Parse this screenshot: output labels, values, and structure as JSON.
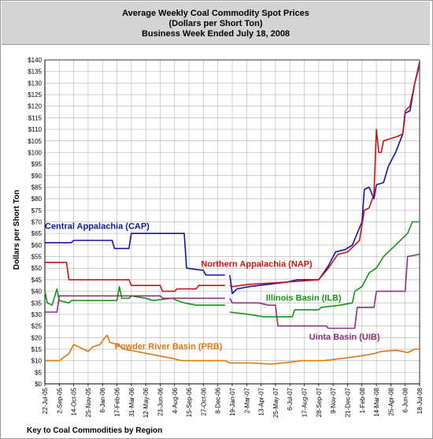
{
  "chart_data": {
    "type": "line",
    "title": [
      "Average Weekly Coal Commodity Spot Prices",
      "(Dollars per Short Ton)",
      "Business Week Ended July 18, 2008"
    ],
    "ylabel": "Dollars per Short Ton",
    "xlabel": "",
    "ylim": [
      0,
      140
    ],
    "y_tick_step": 5,
    "y_tick_format": "$",
    "x_range": [
      "2005-07-22",
      "2008-07-18"
    ],
    "x_ticks": [
      "22-Jul-05",
      "2-Sep-05",
      "14-Oct-05",
      "25-Nov-05",
      "6-Jan-06",
      "17-Feb-06",
      "31-Mar-06",
      "12-May-06",
      "23-Jun-06",
      "4-Aug-06",
      "15-Sep-06",
      "27-Oct-06",
      "8-Dec-06",
      "19-Jan-07",
      "2-Mar-07",
      "13-Apr-07",
      "25-May-07",
      "6-Jul-07",
      "17-Aug-07",
      "28-Sep-07",
      "9-Nov-07",
      "21-Dec-07",
      "1-Feb-08",
      "14-Mar-08",
      "25-Apr-08",
      "6-Jun-08",
      "18-Jul-08"
    ],
    "grid": true,
    "footer": "Key to Coal Commodities by Region",
    "series": [
      {
        "name": "Central Appalachia (CAP)",
        "color": "#1414a8",
        "points": [
          [
            "2005-07-22",
            61
          ],
          [
            "2005-10-07",
            61
          ],
          [
            "2005-10-14",
            62
          ],
          [
            "2006-02-03",
            62
          ],
          [
            "2006-02-10",
            58.5
          ],
          [
            "2006-03-24",
            58.5
          ],
          [
            "2006-03-31",
            65
          ],
          [
            "2006-09-01",
            65
          ],
          [
            "2006-09-08",
            50
          ],
          [
            "2006-10-27",
            49
          ],
          [
            "2006-11-03",
            47
          ],
          [
            "2006-12-29",
            47
          ],
          null,
          [
            "2007-01-12",
            47
          ],
          [
            "2007-01-19",
            39
          ],
          [
            "2007-02-02",
            41
          ],
          [
            "2007-03-09",
            42
          ],
          [
            "2007-06-29",
            44
          ],
          [
            "2007-07-27",
            45
          ],
          [
            "2007-09-28",
            45
          ],
          [
            "2007-10-26",
            51
          ],
          [
            "2007-11-16",
            57
          ],
          [
            "2007-12-14",
            58
          ],
          [
            "2008-01-04",
            60
          ],
          [
            "2008-01-18",
            65
          ],
          [
            "2008-02-01",
            70
          ],
          [
            "2008-02-08",
            84
          ],
          [
            "2008-02-22",
            85
          ],
          [
            "2008-03-07",
            80
          ],
          [
            "2008-03-14",
            86
          ],
          [
            "2008-04-04",
            87
          ],
          [
            "2008-04-18",
            94
          ],
          [
            "2008-05-09",
            100
          ],
          [
            "2008-05-30",
            108
          ],
          [
            "2008-06-06",
            117
          ],
          [
            "2008-06-20",
            118
          ],
          [
            "2008-07-04",
            130
          ],
          [
            "2008-07-18",
            139
          ]
        ]
      },
      {
        "name": "Northern Appalachia (NAP)",
        "color": "#c81414",
        "points": [
          [
            "2005-07-22",
            52.5
          ],
          [
            "2005-09-23",
            52.5
          ],
          [
            "2005-09-30",
            45
          ],
          [
            "2006-03-24",
            45
          ],
          [
            "2006-03-31",
            42.5
          ],
          [
            "2006-06-23",
            42.5
          ],
          [
            "2006-06-30",
            40
          ],
          [
            "2006-08-04",
            40
          ],
          [
            "2006-08-11",
            41
          ],
          [
            "2006-10-06",
            41
          ],
          [
            "2006-10-13",
            42.5
          ],
          [
            "2006-12-29",
            42.5
          ],
          null,
          [
            "2007-01-12",
            42.5
          ],
          [
            "2007-01-19",
            42
          ],
          [
            "2007-03-09",
            43
          ],
          [
            "2007-06-29",
            44
          ],
          [
            "2007-09-28",
            45
          ],
          [
            "2007-10-26",
            50
          ],
          [
            "2007-11-23",
            56
          ],
          [
            "2007-12-21",
            57
          ],
          [
            "2008-01-11",
            60
          ],
          [
            "2008-01-25",
            62
          ],
          [
            "2008-02-08",
            75
          ],
          [
            "2008-02-22",
            76
          ],
          [
            "2008-03-07",
            82
          ],
          [
            "2008-03-14",
            110
          ],
          [
            "2008-03-21",
            100
          ],
          [
            "2008-03-28",
            100
          ],
          [
            "2008-04-04",
            105
          ],
          [
            "2008-04-25",
            106
          ],
          [
            "2008-05-16",
            107
          ],
          [
            "2008-05-30",
            108
          ],
          [
            "2008-06-06",
            118
          ],
          [
            "2008-06-20",
            120
          ],
          [
            "2008-07-04",
            130
          ],
          [
            "2008-07-18",
            138
          ]
        ]
      },
      {
        "name": "Illinois Basin (ILB)",
        "color": "#149614",
        "points": [
          [
            "2005-07-22",
            40
          ],
          [
            "2005-07-29",
            35
          ],
          [
            "2005-08-12",
            34
          ],
          [
            "2005-08-26",
            41
          ],
          [
            "2005-09-02",
            36
          ],
          [
            "2005-09-30",
            35
          ],
          [
            "2005-10-07",
            36
          ],
          [
            "2006-02-17",
            36
          ],
          [
            "2006-02-24",
            42
          ],
          [
            "2006-03-03",
            37
          ],
          [
            "2006-03-24",
            37
          ],
          [
            "2006-03-31",
            38
          ],
          [
            "2006-05-12",
            37
          ],
          [
            "2006-06-02",
            36
          ],
          [
            "2006-07-28",
            37
          ],
          [
            "2006-08-11",
            36
          ],
          [
            "2006-09-01",
            35
          ],
          [
            "2006-10-06",
            34
          ],
          [
            "2006-12-29",
            34
          ],
          null,
          [
            "2007-01-12",
            31
          ],
          [
            "2007-03-09",
            30
          ],
          [
            "2007-04-20",
            29
          ],
          [
            "2007-07-13",
            29
          ],
          [
            "2007-07-20",
            32
          ],
          [
            "2007-09-28",
            32
          ],
          [
            "2007-10-05",
            33
          ],
          [
            "2007-11-30",
            34
          ],
          [
            "2008-01-04",
            35
          ],
          [
            "2008-01-11",
            40
          ],
          [
            "2008-02-01",
            42
          ],
          [
            "2008-02-22",
            48
          ],
          [
            "2008-03-14",
            50
          ],
          [
            "2008-04-04",
            55
          ],
          [
            "2008-04-25",
            58
          ],
          [
            "2008-05-23",
            62
          ],
          [
            "2008-06-13",
            65
          ],
          [
            "2008-06-27",
            70
          ],
          [
            "2008-07-18",
            70
          ]
        ]
      },
      {
        "name": "Powder River Basin (PRB)",
        "color": "#e07814",
        "points": [
          [
            "2005-07-22",
            10
          ],
          [
            "2005-09-02",
            10
          ],
          [
            "2005-09-30",
            13
          ],
          [
            "2005-10-14",
            17
          ],
          [
            "2005-10-28",
            16
          ],
          [
            "2005-11-25",
            14
          ],
          [
            "2005-12-09",
            16
          ],
          [
            "2005-12-30",
            17
          ],
          [
            "2006-01-13",
            20
          ],
          [
            "2006-01-20",
            21
          ],
          [
            "2006-01-27",
            18
          ],
          [
            "2006-02-17",
            17
          ],
          [
            "2006-03-10",
            15
          ],
          [
            "2006-04-14",
            14
          ],
          [
            "2006-05-19",
            13
          ],
          [
            "2006-06-23",
            12
          ],
          [
            "2006-07-28",
            11
          ],
          [
            "2006-08-25",
            10
          ],
          [
            "2006-10-06",
            10
          ],
          [
            "2006-12-29",
            10
          ],
          [
            "2007-01-12",
            9
          ],
          [
            "2007-03-16",
            9
          ],
          [
            "2007-05-11",
            8.5
          ],
          [
            "2007-06-15",
            9
          ],
          [
            "2007-08-10",
            10
          ],
          [
            "2007-10-12",
            10
          ],
          [
            "2007-12-07",
            11
          ],
          [
            "2008-01-25",
            12
          ],
          [
            "2008-03-07",
            13
          ],
          [
            "2008-03-28",
            14
          ],
          [
            "2008-05-09",
            14.5
          ],
          [
            "2008-05-30",
            14
          ],
          [
            "2008-06-13",
            13.5
          ],
          [
            "2008-07-04",
            15
          ],
          [
            "2008-07-18",
            15
          ]
        ]
      },
      {
        "name": "Uinta Basin (UIB)",
        "color": "#8c327a",
        "points": [
          [
            "2005-07-22",
            31
          ],
          [
            "2005-08-26",
            31
          ],
          [
            "2005-09-02",
            38
          ],
          [
            "2006-06-23",
            38
          ],
          [
            "2006-06-30",
            37
          ],
          [
            "2006-12-29",
            37
          ],
          null,
          [
            "2007-01-12",
            37
          ],
          [
            "2007-01-19",
            35
          ],
          [
            "2007-04-06",
            35
          ],
          [
            "2007-05-04",
            34
          ],
          [
            "2007-05-25",
            34
          ],
          [
            "2007-06-01",
            25
          ],
          [
            "2007-10-19",
            25
          ],
          [
            "2007-10-26",
            24
          ],
          [
            "2008-01-11",
            24
          ],
          [
            "2008-01-18",
            33
          ],
          [
            "2008-03-07",
            33
          ],
          [
            "2008-03-14",
            40
          ],
          [
            "2008-06-06",
            40
          ],
          [
            "2008-06-13",
            55
          ],
          [
            "2008-07-18",
            56
          ]
        ]
      }
    ],
    "series_labels": [
      {
        "text": "Central Appalachia (CAP)",
        "anchor": [
          "2005-07-22",
          67
        ],
        "color": "#1414a8"
      },
      {
        "text": "Northern Appalachia (NAP)",
        "anchor": [
          "2006-10-20",
          50.5
        ],
        "color": "#c81414"
      },
      {
        "text": "Illinois Basin (ILB)",
        "anchor": [
          "2007-04-27",
          36
        ],
        "color": "#149614"
      },
      {
        "text": "Uinta Basin (UIB)",
        "anchor": [
          "2007-08-31",
          19
        ],
        "color": "#8c327a"
      },
      {
        "text": "Powder River Basin (PRB)",
        "anchor": [
          "2006-02-10",
          15
        ],
        "color": "#e07814"
      }
    ]
  }
}
